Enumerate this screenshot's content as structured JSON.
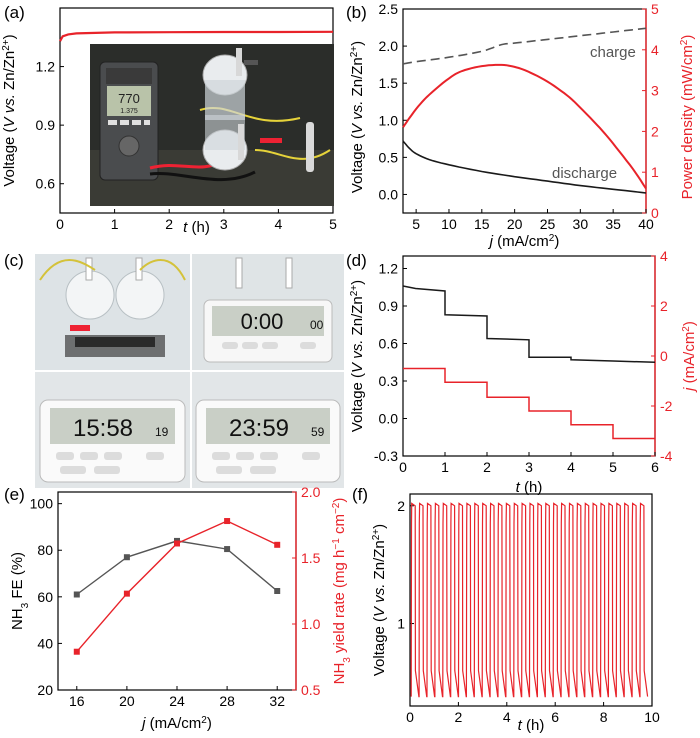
{
  "colors": {
    "red": "#e8232a",
    "black": "#1a1a1a",
    "gray": "#555555"
  },
  "panel_labels": [
    "(a)",
    "(b)",
    "(c)",
    "(d)",
    "(e)",
    "(f)"
  ],
  "photos": {
    "a": {
      "meter_reading": "770",
      "meter_sub": "1.375"
    },
    "c": {
      "timers": [
        "0:00",
        "15:58",
        "23:59"
      ],
      "timer_secs": [
        "00",
        "19",
        "59"
      ]
    }
  },
  "chart_data": [
    {
      "id": "a",
      "type": "line",
      "xlabel": "t (h)",
      "ylabel": "Voltage (V vs. Zn/Zn2+)",
      "xlim": [
        0,
        5
      ],
      "ylim": [
        0.45,
        1.5
      ],
      "xticks": [
        0,
        1,
        2,
        3,
        4,
        5
      ],
      "yticks": [
        0.6,
        0.9,
        1.2
      ],
      "series": [
        {
          "name": "voltage",
          "color": "red",
          "x": [
            0,
            0.05,
            0.15,
            0.3,
            1,
            2,
            3,
            4,
            5
          ],
          "y": [
            1.33,
            1.355,
            1.365,
            1.37,
            1.375,
            1.376,
            1.377,
            1.377,
            1.378
          ]
        }
      ]
    },
    {
      "id": "b",
      "type": "line",
      "xlabel": "j (mA/cm2)",
      "ylabel": "Voltage (V vs. Zn/Zn2+)",
      "ylabel_right": "Power density (mW/cm2)",
      "xlim": [
        3,
        40
      ],
      "ylim": [
        -0.25,
        2.5
      ],
      "ylim_right": [
        0,
        5
      ],
      "xticks": [
        5,
        10,
        15,
        20,
        25,
        30,
        35,
        40
      ],
      "yticks": [
        0.0,
        0.5,
        1.0,
        1.5,
        2.0,
        2.5
      ],
      "yticks_right": [
        0,
        1,
        2,
        3,
        4,
        5
      ],
      "annotations": [
        "charge",
        "discharge"
      ],
      "series": [
        {
          "name": "charge",
          "axis": "left",
          "style": "dashed",
          "color": "gray",
          "x": [
            3,
            5,
            10,
            15,
            18,
            20,
            25,
            30,
            35,
            40
          ],
          "y": [
            1.76,
            1.79,
            1.85,
            1.93,
            2.02,
            2.04,
            2.09,
            2.14,
            2.19,
            2.24
          ]
        },
        {
          "name": "discharge",
          "axis": "left",
          "style": "solid",
          "color": "black",
          "x": [
            3,
            4,
            5,
            7,
            10,
            15,
            20,
            25,
            30,
            35,
            40
          ],
          "y": [
            0.72,
            0.62,
            0.55,
            0.47,
            0.4,
            0.31,
            0.24,
            0.18,
            0.12,
            0.07,
            0.02
          ]
        },
        {
          "name": "power density",
          "axis": "right",
          "style": "solid",
          "color": "red",
          "x": [
            3,
            5,
            7,
            10,
            12,
            15,
            18,
            20,
            22,
            25,
            28,
            30,
            33,
            35,
            38,
            40
          ],
          "y": [
            2.1,
            2.55,
            2.9,
            3.3,
            3.48,
            3.6,
            3.63,
            3.58,
            3.47,
            3.22,
            2.88,
            2.58,
            2.08,
            1.7,
            1.08,
            0.6
          ]
        }
      ]
    },
    {
      "id": "d",
      "type": "line",
      "xlabel": "t (h)",
      "ylabel": "Voltage (V vs. Zn/Zn2+)",
      "ylabel_right": "j (mA/cm2)",
      "xlim": [
        0,
        6
      ],
      "ylim": [
        -0.3,
        1.3
      ],
      "ylim_right": [
        -4.0,
        4.0
      ],
      "xticks": [
        0,
        1,
        2,
        3,
        4,
        5,
        6
      ],
      "yticks": [
        -0.3,
        0.0,
        0.3,
        0.6,
        0.9,
        1.2
      ],
      "yticks_right": [
        -4,
        -2,
        0,
        2,
        4
      ],
      "series": [
        {
          "name": "voltage",
          "axis": "left",
          "style": "step",
          "color": "black",
          "x": [
            0,
            0.3,
            1,
            1,
            2,
            2,
            3,
            3,
            4,
            4,
            5,
            6
          ],
          "y": [
            1.06,
            1.04,
            1.02,
            0.83,
            0.82,
            0.64,
            0.63,
            0.49,
            0.49,
            0.47,
            0.46,
            0.45
          ]
        },
        {
          "name": "current density",
          "axis": "right",
          "style": "step",
          "color": "red",
          "x": [
            0,
            1,
            1,
            2,
            2,
            3,
            3,
            4,
            4,
            5,
            5,
            6
          ],
          "y": [
            -0.5,
            -0.5,
            -1.05,
            -1.05,
            -1.65,
            -1.65,
            -2.2,
            -2.2,
            -2.75,
            -2.75,
            -3.3,
            -3.3
          ]
        }
      ]
    },
    {
      "id": "e",
      "type": "line",
      "xlabel": "j (mA/cm2)",
      "ylabel": "NH3 FE (%)",
      "ylabel_right": "NH3 yield rate (mg h-1 cm-2)",
      "xlim": [
        14.5,
        33.5
      ],
      "ylim": [
        20,
        105
      ],
      "ylim_right": [
        0.5,
        2.0
      ],
      "xticks": [
        16,
        20,
        24,
        28,
        32
      ],
      "yticks": [
        20,
        40,
        60,
        80,
        100
      ],
      "yticks_right": [
        "0.5",
        "1.0",
        "1.5",
        "2.0"
      ],
      "categories": [
        16,
        20,
        24,
        28,
        32
      ],
      "series": [
        {
          "name": "NH3 FE",
          "axis": "left",
          "color": "gray",
          "values": [
            61,
            77,
            84,
            80.5,
            62.5
          ]
        },
        {
          "name": "NH3 yield rate",
          "axis": "right",
          "color": "red",
          "values": [
            0.79,
            1.23,
            1.61,
            1.78,
            1.6
          ]
        }
      ]
    },
    {
      "id": "f",
      "type": "line",
      "xlabel": "t (h)",
      "ylabel": "Voltage (V vs. Zn/Zn2+)",
      "xlim": [
        0,
        10
      ],
      "ylim": [
        0.3,
        2.1
      ],
      "xticks": [
        0,
        2,
        4,
        6,
        8,
        10
      ],
      "yticks": [
        1,
        2
      ],
      "cycling": {
        "period_h": 0.326,
        "cycles": 30,
        "v_high": 2.02,
        "v_low": 0.38,
        "v_mid_charge": 1.85,
        "v_mid_discharge": 0.6
      }
    }
  ]
}
